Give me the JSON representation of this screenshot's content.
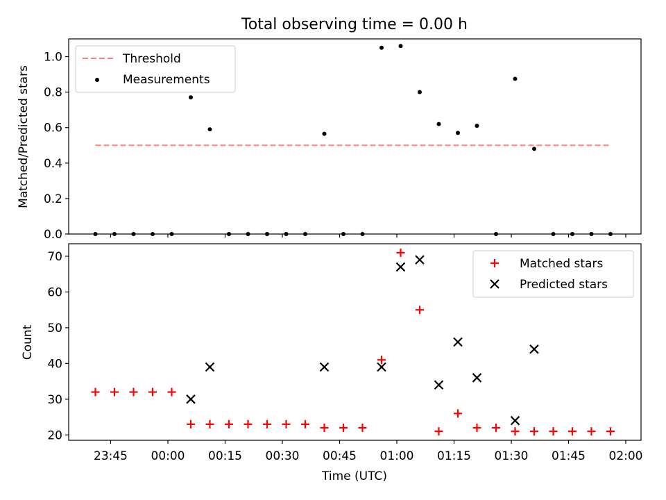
{
  "chart_data": [
    {
      "type": "scatter",
      "title": "Total observing time = 0.00 h",
      "ylabel": "Matched/Predicted stars",
      "xlim": [
        "23:34",
        "02:04"
      ],
      "ylim": [
        0,
        1.1
      ],
      "yticks": [
        0.0,
        0.2,
        0.4,
        0.6,
        0.8,
        1.0
      ],
      "ytick_labels": [
        "0.0",
        "0.2",
        "0.4",
        "0.6",
        "0.8",
        "1.0"
      ],
      "xticks": [
        "23:45",
        "00:00",
        "00:15",
        "00:30",
        "00:45",
        "01:00",
        "01:15",
        "01:30",
        "01:45",
        "02:00"
      ],
      "legend": {
        "placement": "upper left",
        "entries": [
          "Threshold",
          "Measurements"
        ]
      },
      "threshold": {
        "name": "Threshold",
        "value": 0.5,
        "x_start": "23:41",
        "x_end": "01:56",
        "color": "#ff7f7f"
      },
      "series": [
        {
          "name": "Measurements",
          "color": "#000000",
          "x": [
            "23:41",
            "23:46",
            "23:51",
            "23:56",
            "00:01",
            "00:06",
            "00:11",
            "00:16",
            "00:21",
            "00:26",
            "00:31",
            "00:36",
            "00:41",
            "00:46",
            "00:51",
            "00:56",
            "01:01",
            "01:06",
            "01:11",
            "01:16",
            "01:21",
            "01:26",
            "01:31",
            "01:36",
            "01:41",
            "01:46",
            "01:51",
            "01:56"
          ],
          "y": [
            0,
            0,
            0,
            0,
            0,
            0.77,
            0.59,
            0,
            0,
            0,
            0,
            0,
            0.565,
            0,
            0,
            1.05,
            1.06,
            0.8,
            0.62,
            0.57,
            0.61,
            0,
            0.875,
            0.48,
            0,
            0,
            0,
            0
          ]
        }
      ]
    },
    {
      "type": "scatter",
      "xlabel": "Time (UTC)",
      "ylabel": "Count",
      "xlim": [
        "23:34",
        "02:04"
      ],
      "ylim": [
        18.5,
        73.5
      ],
      "yticks": [
        20,
        30,
        40,
        50,
        60,
        70
      ],
      "ytick_labels": [
        "20",
        "30",
        "40",
        "50",
        "60",
        "70"
      ],
      "xticks": [
        "23:45",
        "00:00",
        "00:15",
        "00:30",
        "00:45",
        "01:00",
        "01:15",
        "01:30",
        "01:45",
        "02:00"
      ],
      "legend": {
        "placement": "upper right",
        "entries": [
          "Matched stars",
          "Predicted stars"
        ]
      },
      "series": [
        {
          "name": "Matched stars",
          "marker": "plus",
          "color": "#ff0000",
          "x": [
            "23:41",
            "23:46",
            "23:51",
            "23:56",
            "00:01",
            "00:06",
            "00:11",
            "00:16",
            "00:21",
            "00:26",
            "00:31",
            "00:36",
            "00:41",
            "00:46",
            "00:51",
            "00:56",
            "01:01",
            "01:06",
            "01:11",
            "01:16",
            "01:21",
            "01:26",
            "01:31",
            "01:36",
            "01:41",
            "01:46",
            "01:51",
            "01:56"
          ],
          "y": [
            32,
            32,
            32,
            32,
            32,
            23,
            23,
            23,
            23,
            23,
            23,
            23,
            22,
            22,
            22,
            41,
            71,
            55,
            21,
            26,
            22,
            22,
            21,
            21,
            21,
            21,
            21,
            21
          ]
        },
        {
          "name": "Predicted stars",
          "marker": "x",
          "color": "#000000",
          "x": [
            "00:06",
            "00:11",
            "00:41",
            "00:56",
            "01:01",
            "01:06",
            "01:11",
            "01:16",
            "01:21",
            "01:31",
            "01:36"
          ],
          "y": [
            30,
            39,
            39,
            39,
            67,
            69,
            34,
            46,
            36,
            24,
            44
          ]
        }
      ]
    }
  ]
}
